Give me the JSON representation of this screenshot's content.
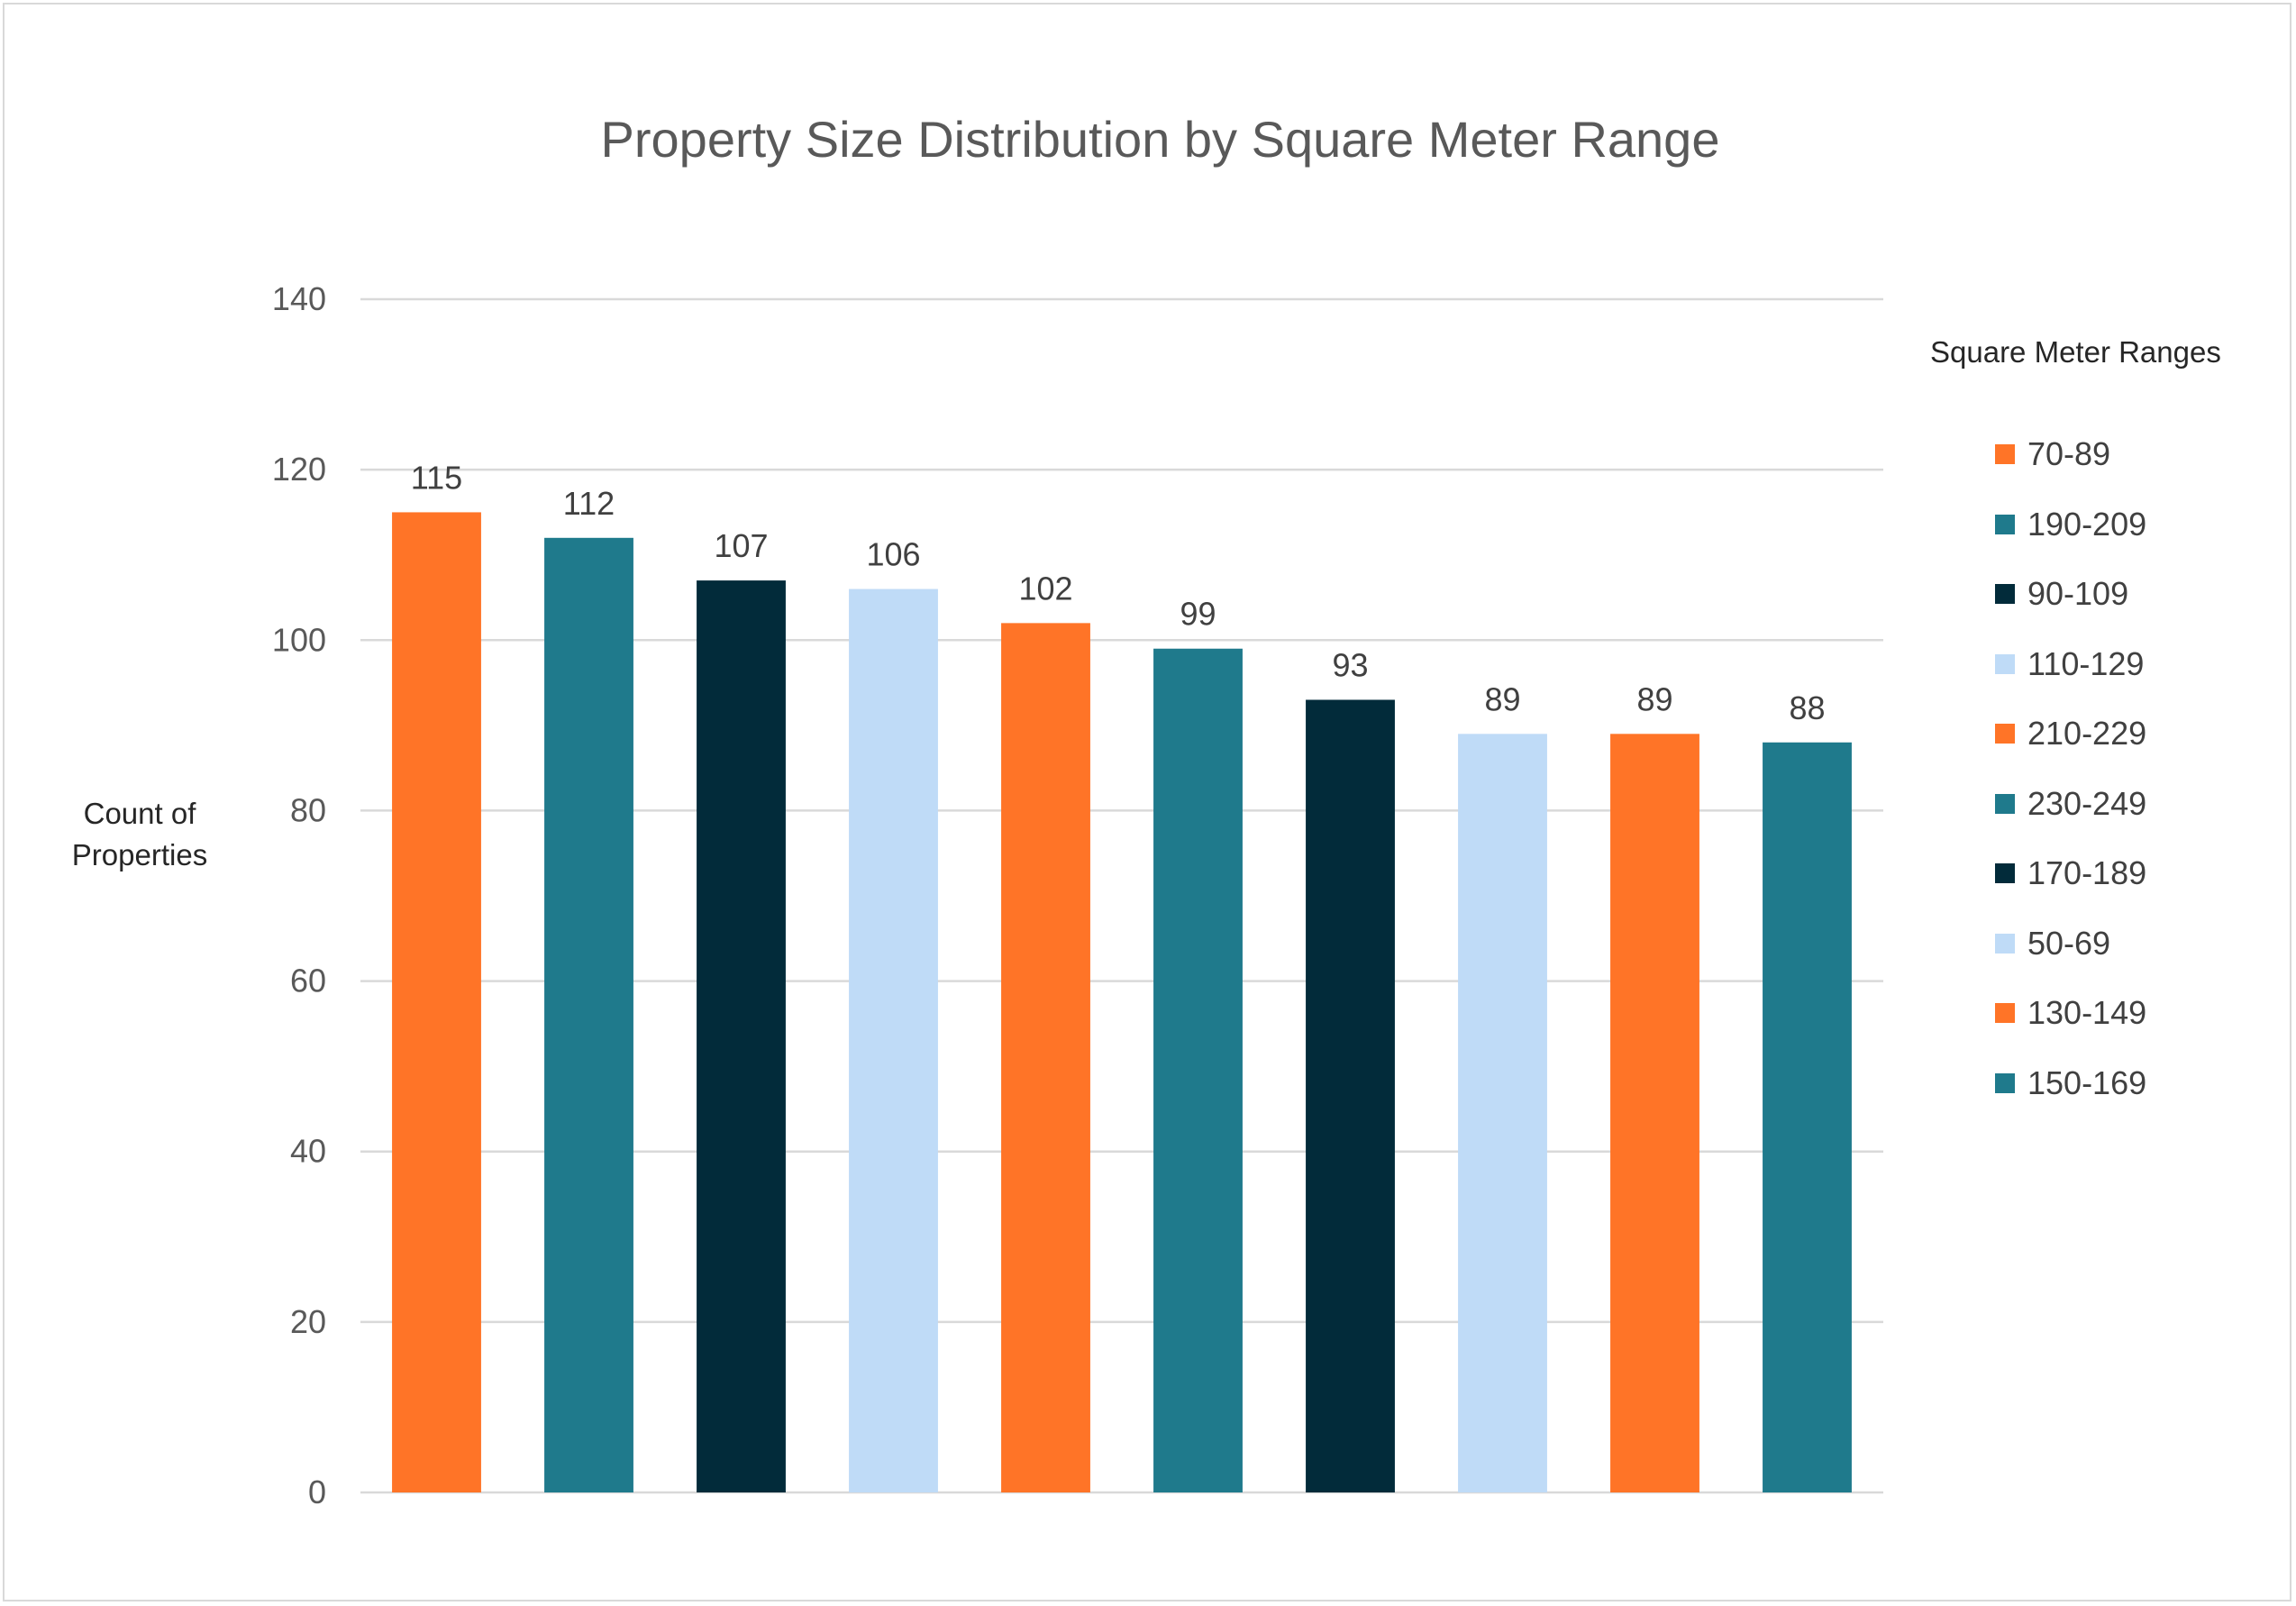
{
  "chart_data": {
    "type": "bar",
    "title": "Property Size Distribution by Square Meter Range",
    "ylabel": "Count of Properties",
    "ylabel_lines": [
      "Count of",
      "Properties"
    ],
    "ylim": [
      0,
      140
    ],
    "yticks": [
      "0",
      "20",
      "40",
      "60",
      "80",
      "100",
      "120",
      "140"
    ],
    "grid": true,
    "legend_title": "Square Meter Ranges",
    "legend_position": "right",
    "categories": [
      "70-89",
      "190-209",
      "90-109",
      "110-129",
      "210-229",
      "230-249",
      "170-189",
      "50-69",
      "130-149",
      "150-169"
    ],
    "values": [
      115,
      112,
      107,
      106,
      102,
      99,
      93,
      89,
      89,
      88
    ],
    "colors": [
      "#FF7427",
      "#1F7A8C",
      "#022B3A",
      "#BFDBF7",
      "#FF7427",
      "#1F7A8C",
      "#022B3A",
      "#BFDBF7",
      "#FF7427",
      "#1F7A8C"
    ]
  }
}
